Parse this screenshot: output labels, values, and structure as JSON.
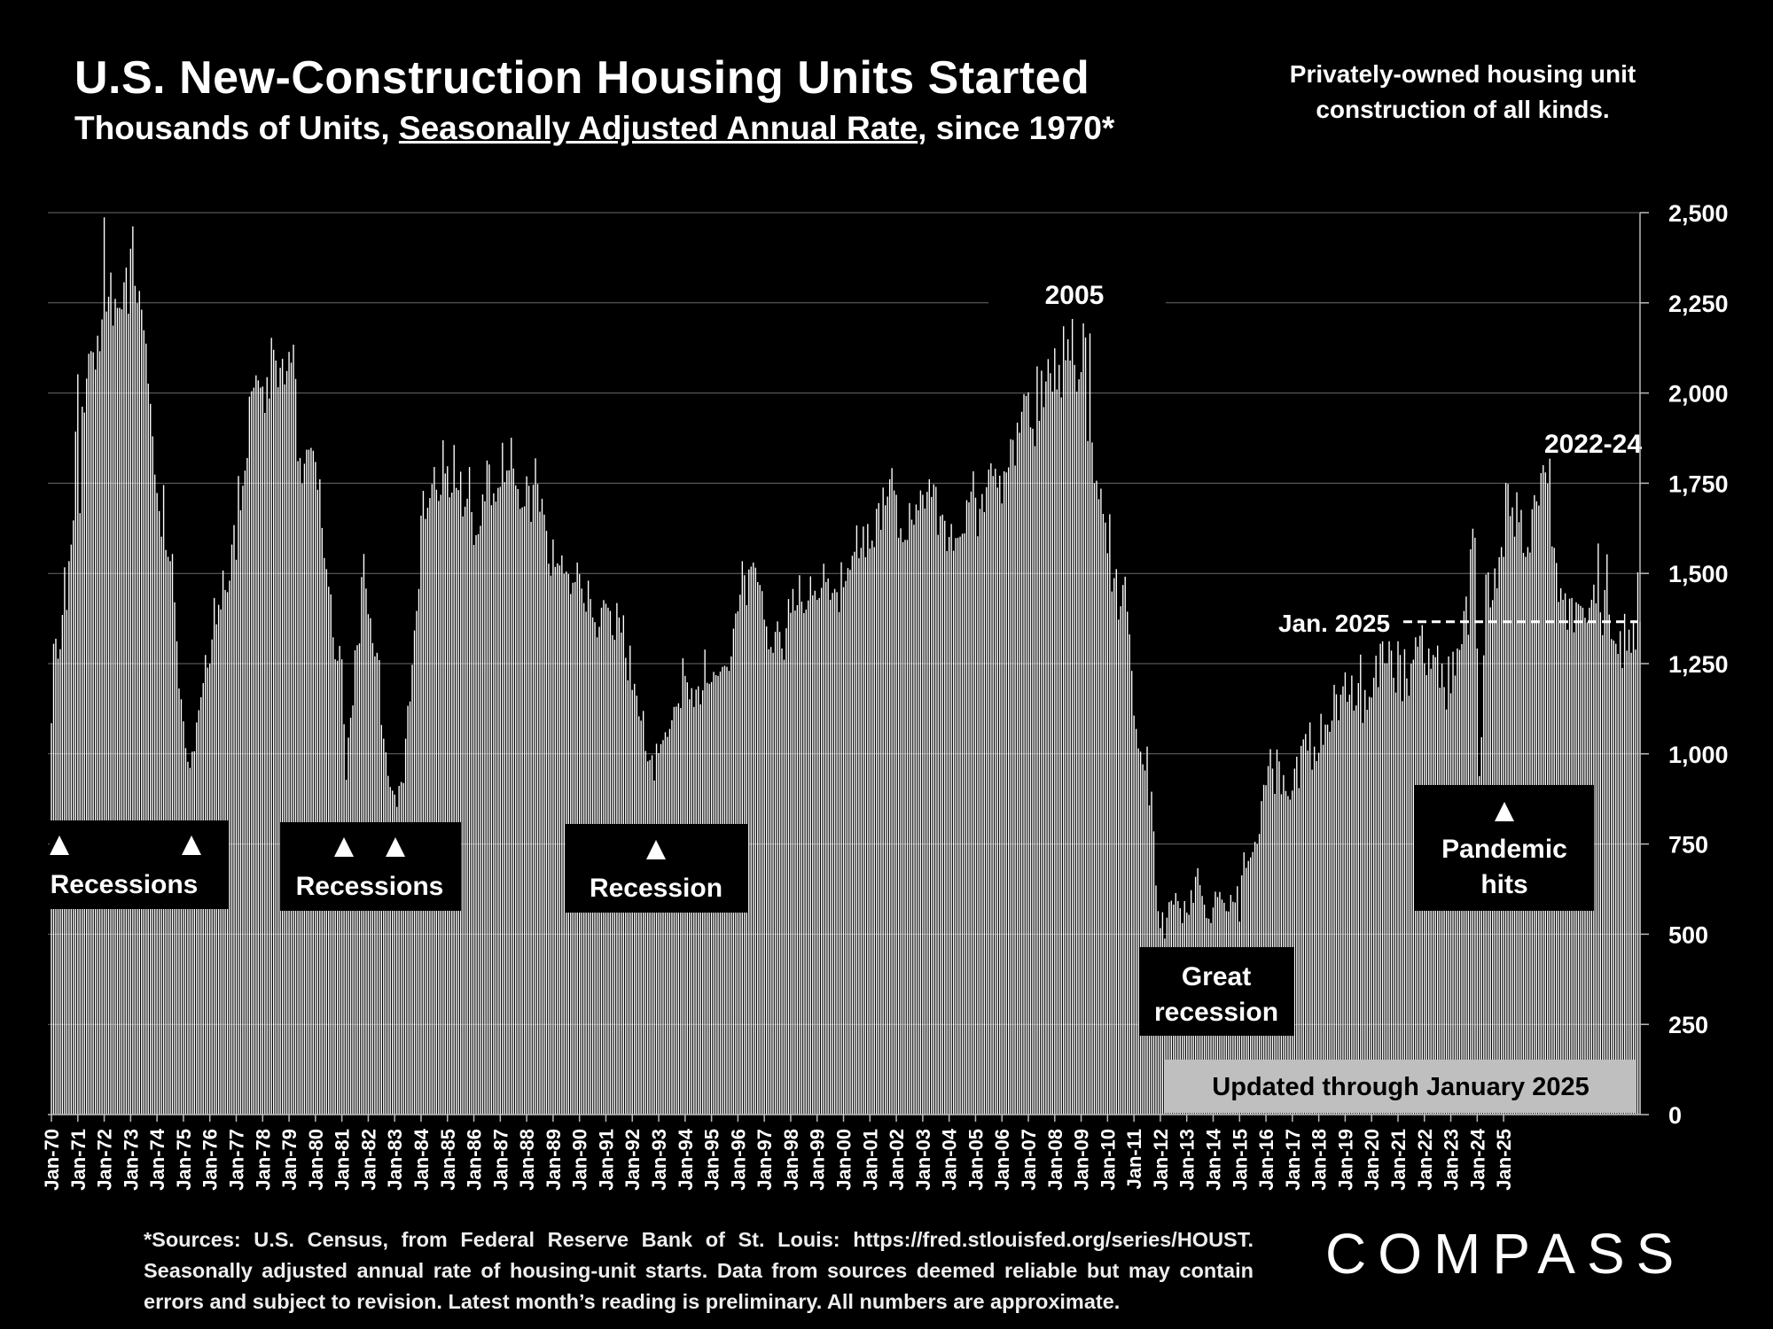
{
  "title": "U.S. New-Construction Housing Units Started",
  "subtitle": {
    "before": "Thousands of Units, ",
    "underlined": "Seasonally Adjusted Annual Rate",
    "after": ", since 1970*"
  },
  "note": "Privately-owned housing unit construction of all kinds.",
  "source_note": "*Sources: U.S. Census, from Federal Reserve Bank of St. Louis: https://fred.stlouisfed.org/series/HOUST. Seasonally adjusted annual rate of housing-unit starts. Data from sources deemed reliable but may contain errors and subject to revision. Latest month’s reading is preliminary. All numbers are approximate.",
  "logo": "COMPASS",
  "colors": {
    "background": "#000000",
    "bars": "#ffffff",
    "text": "#ffffff",
    "grid": "#6a6a6a",
    "updated_box": "#bfbfbf"
  },
  "chart_data": {
    "type": "bar",
    "title": "U.S. New-Construction Housing Units Started",
    "ylabel": "",
    "ylim": [
      0,
      2500
    ],
    "y_ticks": [
      "0",
      "250",
      "500",
      "750",
      "1,000",
      "1,250",
      "1,500",
      "1,750",
      "2,000",
      "2,250",
      "2,500"
    ],
    "y_tick_values": [
      0,
      250,
      500,
      750,
      1000,
      1250,
      1500,
      1750,
      2000,
      2250,
      2500
    ],
    "y_axis_side": "right",
    "grid": true,
    "x_ticks": [
      "Jan-70",
      "Jan-71",
      "Jan-72",
      "Jan-73",
      "Jan-74",
      "Jan-75",
      "Jan-76",
      "Jan-77",
      "Jan-78",
      "Jan-79",
      "Jan-80",
      "Jan-81",
      "Jan-82",
      "Jan-83",
      "Jan-84",
      "Jan-85",
      "Jan-86",
      "Jan-87",
      "Jan-88",
      "Jan-89",
      "Jan-90",
      "Jan-91",
      "Jan-92",
      "Jan-93",
      "Jan-94",
      "Jan-95",
      "Jan-96",
      "Jan-97",
      "Jan-98",
      "Jan-99",
      "Jan-00",
      "Jan-01",
      "Jan-02",
      "Jan-03",
      "Jan-04",
      "Jan-05",
      "Jan-06",
      "Jan-07",
      "Jan-08",
      "Jan-09",
      "Jan-10",
      "Jan-11",
      "Jan-12",
      "Jan-13",
      "Jan-14",
      "Jan-15",
      "Jan-16",
      "Jan-17",
      "Jan-18",
      "Jan-19",
      "Jan-20",
      "Jan-21",
      "Jan-22",
      "Jan-23",
      "Jan-24",
      "Jan-25"
    ],
    "frequency": "monthly",
    "series": [
      {
        "values": [
          1085,
          1305,
          1319,
          1264,
          1290,
          1385,
          1517,
          1399,
          1534,
          1580,
          1647,
          1893,
          2052,
          1667,
          1962,
          1946,
          2040,
          2109,
          2116,
          2113,
          2065,
          2159,
          2116,
          2204,
          2487,
          2226,
          2267,
          2334,
          2187,
          2261,
          2236,
          2236,
          2232,
          2307,
          2348,
          2220,
          2400,
          2462,
          2297,
          2249,
          2283,
          2231,
          2174,
          2137,
          2026,
          1970,
          1880,
          1774,
          1723,
          1673,
          1602,
          1745,
          1565,
          1546,
          1534,
          1554,
          1420,
          1312,
          1181,
          1151,
          1090,
          1016,
          978,
          961,
          1006,
          1007,
          1087,
          1121,
          1157,
          1196,
          1274,
          1239,
          1250,
          1317,
          1432,
          1359,
          1413,
          1400,
          1508,
          1454,
          1448,
          1480,
          1580,
          1634,
          1538,
          1770,
          1675,
          1743,
          1785,
          1820,
          1990,
          2005,
          2015,
          2049,
          2035,
          2015,
          2018,
          1945,
          2044,
          1985,
          2153,
          2120,
          2090,
          2016,
          2070,
          2095,
          2024,
          2061,
          2114,
          2084,
          2134,
          2039,
          1811,
          1820,
          1749,
          1804,
          1843,
          1843,
          1848,
          1840,
          1809,
          1732,
          1761,
          1626,
          1543,
          1512,
          1463,
          1442,
          1323,
          1262,
          1258,
          1299,
          1262,
          1082,
          928,
          1045,
          1100,
          1134,
          1287,
          1301,
          1306,
          1490,
          1554,
          1458,
          1387,
          1376,
          1307,
          1270,
          1280,
          1260,
          1080,
          1042,
          1004,
          939,
          908,
          898,
          887,
          853,
          911,
          922,
          919,
          1042,
          1133,
          1145,
          1247,
          1342,
          1396,
          1457,
          1660,
          1729,
          1651,
          1682,
          1709,
          1748,
          1795,
          1732,
          1701,
          1718,
          1869,
          1777,
          1797,
          1711,
          1724,
          1856,
          1737,
          1731,
          1782,
          1658,
          1685,
          1707,
          1795,
          1670,
          1579,
          1606,
          1609,
          1632,
          1719,
          1700,
          1813,
          1802,
          1689,
          1722,
          1699,
          1737,
          1740,
          1862,
          1753,
          1785,
          1786,
          1876,
          1791,
          1744,
          1734,
          1679,
          1683,
          1686,
          1769,
          1743,
          1643,
          1746,
          1819,
          1748,
          1671,
          1707,
          1663,
          1618,
          1527,
          1494,
          1594,
          1518,
          1528,
          1522,
          1550,
          1499,
          1505,
          1498,
          1443,
          1474,
          1476,
          1530,
          1498,
          1458,
          1418,
          1394,
          1480,
          1429,
          1378,
          1365,
          1323,
          1352,
          1405,
          1426,
          1416,
          1405,
          1396,
          1329,
          1316,
          1418,
          1378,
          1336,
          1384,
          1266,
          1204,
          1300,
          1177,
          1194,
          1161,
          1104,
          1092,
          1119,
          1008,
          979,
          983,
          996,
          926,
          1028,
          1002,
          1027,
          1038,
          1060,
          1047,
          1069,
          1093,
          1130,
          1131,
          1140,
          1127,
          1265,
          1216,
          1198,
          1151,
          1182,
          1130,
          1178,
          1187,
          1137,
          1176,
          1289,
          1197,
          1194,
          1199,
          1227,
          1218,
          1216,
          1228,
          1241,
          1244,
          1241,
          1230,
          1270,
          1347,
          1389,
          1395,
          1441,
          1534,
          1495,
          1412,
          1511,
          1519,
          1530,
          1516,
          1476,
          1468,
          1451,
          1372,
          1353,
          1290,
          1296,
          1280,
          1338,
          1367,
          1338,
          1292,
          1261,
          1348,
          1429,
          1391,
          1457,
          1397,
          1412,
          1495,
          1422,
          1390,
          1400,
          1425,
          1492,
          1439,
          1452,
          1427,
          1432,
          1460,
          1527,
          1476,
          1486,
          1427,
          1446,
          1457,
          1448,
          1393,
          1531,
          1462,
          1479,
          1515,
          1510,
          1549,
          1560,
          1633,
          1542,
          1571,
          1630,
          1545,
          1637,
          1569,
          1591,
          1573,
          1679,
          1695,
          1621,
          1738,
          1689,
          1713,
          1761,
          1792,
          1730,
          1718,
          1599,
          1625,
          1587,
          1593,
          1593,
          1695,
          1649,
          1635,
          1691,
          1675,
          1730,
          1718,
          1680,
          1726,
          1761,
          1712,
          1747,
          1740,
          1607,
          1659,
          1663,
          1646,
          1562,
          1601,
          1637,
          1563,
          1598,
          1599,
          1602,
          1610,
          1611,
          1703,
          1697,
          1727,
          1783,
          1710,
          1603,
          1679,
          1720,
          1670,
          1739,
          1788,
          1805,
          1770,
          1790,
          1738,
          1771,
          1694,
          1783,
          1780,
          1794,
          1872,
          1870,
          1799,
          1918,
          1890,
          1948,
          1997,
          1992,
          2002,
          1905,
          1901,
          1853,
          2074,
          1923,
          2062,
          1961,
          2032,
          2094,
          2055,
          2004,
          2124,
          2010,
          2078,
          1988,
          2185,
          2091,
          2149,
          2090,
          2218,
          2078,
          2004,
          2038,
          2058,
          2193,
          2154,
          1867,
          2165,
          1863,
          1750,
          1757,
          1706,
          1735,
          1665,
          1641,
          1556,
          1664,
          1450,
          1487,
          1512,
          1372,
          1409,
          1468,
          1491,
          1394,
          1331,
          1230,
          1106,
          1069,
          1015,
          1006,
          971,
          954,
          1020,
          857,
          895,
          785,
          635,
          564,
          517,
          561,
          488,
          546,
          589,
          593,
          582,
          614,
          592,
          572,
          531,
          592,
          560,
          554,
          622,
          587,
          659,
          683,
          636,
          606,
          582,
          545,
          543,
          531,
          574,
          618,
          603,
          617,
          596,
          587,
          564,
          563,
          609,
          590,
          588,
          633,
          535,
          663,
          727,
          684,
          703,
          713,
          728,
          756,
          750,
          778,
          869,
          914,
          913,
          966,
          1013,
          959,
          889,
          1012,
          979,
          888,
          941,
          897,
          883,
          873,
          898,
          959,
          992,
          905,
          1022,
          1040,
          1055,
          1009,
          1087,
          956,
          1020,
          980,
          1003,
          1111,
          1025,
          1081,
          1081,
          1061,
          1092,
          1191,
          1165,
          1093,
          1164,
          1187,
          1226,
          1144,
          1164,
          1217,
          1120,
          1134,
          1196,
          1275,
          1086,
          1177,
          1122,
          1158,
          1156,
          1211,
          1272,
          1185,
          1305,
          1331,
          1251,
          1251,
          1330,
          1286,
          1211,
          1170,
          1318,
          1274,
          1146,
          1290,
          1209,
          1161,
          1250,
          1261,
          1323,
          1297,
          1327,
          1357,
          1251,
          1218,
          1292,
          1236,
          1274,
          1268,
          1300,
          1183,
          1250,
          1185,
          1123,
          1270,
          1168,
          1283,
          1217,
          1292,
          1288,
          1304,
          1396,
          1436,
          1330,
          1567,
          1624,
          1599,
          1292,
          938,
          1046,
          1273,
          1497,
          1503,
          1406,
          1426,
          1514,
          1459,
          1545,
          1573,
          1546,
          1751,
          1748,
          1659,
          1683,
          1602,
          1725,
          1642,
          1676,
          1557,
          1546,
          1573,
          1558,
          1678,
          1717,
          1700,
          1688,
          1778,
          1800,
          1780,
          1749,
          1818,
          1575,
          1571,
          1529,
          1421,
          1459,
          1427,
          1445,
          1344,
          1430,
          1432,
          1337,
          1420,
          1415,
          1410,
          1405,
          1377,
          1364,
          1405,
          1427,
          1469,
          1417,
          1583,
          1392,
          1329,
          1454,
          1553,
          1386,
          1318,
          1314,
          1305,
          1277,
          1340,
          1238,
          1388,
          1286,
          1344,
          1280,
          1370,
          1289,
          1503,
          1366
        ]
      }
    ],
    "annotations": [
      {
        "text": "2005",
        "x": "2005"
      },
      {
        "text": "2022-24",
        "x": "2022"
      },
      {
        "text": "Jan. 2025",
        "y": 1366,
        "style": "dashed reference line"
      },
      {
        "text": "Recessions",
        "markers": [
          "Jan-70",
          "Nov-74"
        ]
      },
      {
        "text": "Recessions",
        "markers": [
          "Feb-80",
          "Oct-81"
        ]
      },
      {
        "text": "Recession",
        "markers": [
          "Sep-90"
        ]
      },
      {
        "text": "Great recession"
      },
      {
        "text": "Pandemic hits",
        "markers": [
          "Apr-20"
        ]
      }
    ],
    "updated_label": "Updated through January 2025"
  }
}
